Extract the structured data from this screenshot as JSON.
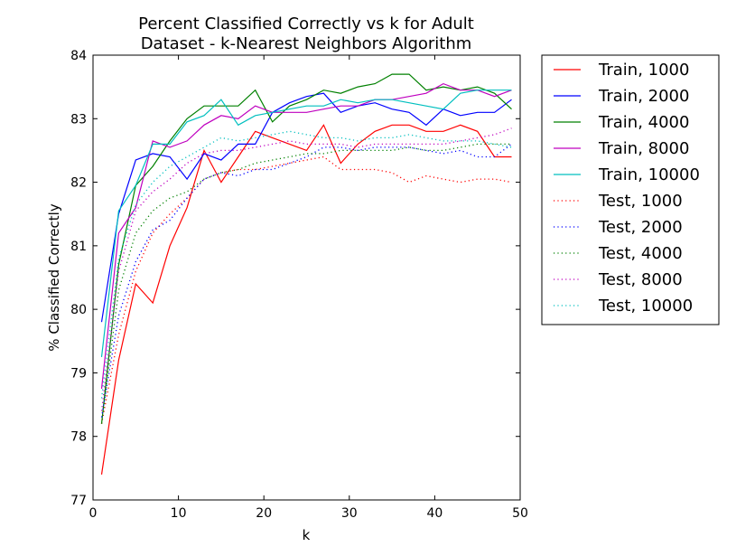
{
  "chart_data": {
    "type": "line",
    "title_lines": [
      "Percent Classified Correctly vs k for Adult",
      "Dataset - k-Nearest Neighbors Algorithm"
    ],
    "xlabel": "k",
    "ylabel": "% Classified Correctly",
    "xlim": [
      0,
      50
    ],
    "ylim": [
      77,
      84
    ],
    "xticks": [
      "0",
      "10",
      "20",
      "30",
      "40",
      "50"
    ],
    "yticks": [
      "77",
      "78",
      "79",
      "80",
      "81",
      "82",
      "83",
      "84"
    ],
    "grid": false,
    "legend_position": "outside-right",
    "x": [
      1,
      3,
      5,
      7,
      9,
      11,
      13,
      15,
      17,
      19,
      21,
      23,
      25,
      27,
      29,
      31,
      33,
      35,
      37,
      39,
      41,
      43,
      45,
      47,
      49
    ],
    "series": [
      {
        "name": "Train, 1000",
        "color": "#ff0000",
        "style": "solid",
        "values": [
          77.4,
          79.2,
          80.4,
          80.1,
          81.0,
          81.6,
          82.5,
          82.0,
          82.4,
          82.8,
          82.7,
          82.6,
          82.5,
          82.9,
          82.3,
          82.6,
          82.8,
          82.9,
          82.9,
          82.8,
          82.8,
          82.9,
          82.8,
          82.4,
          82.4
        ]
      },
      {
        "name": "Train, 2000",
        "color": "#0000ff",
        "style": "solid",
        "values": [
          79.8,
          81.5,
          82.35,
          82.45,
          82.4,
          82.05,
          82.45,
          82.35,
          82.6,
          82.6,
          83.1,
          83.25,
          83.35,
          83.4,
          83.1,
          83.2,
          83.25,
          83.15,
          83.1,
          82.9,
          83.15,
          83.05,
          83.1,
          83.1,
          83.3
        ]
      },
      {
        "name": "Train, 4000",
        "color": "#008000",
        "style": "solid",
        "values": [
          78.2,
          80.7,
          81.95,
          82.25,
          82.65,
          83.0,
          83.2,
          83.2,
          83.2,
          83.45,
          82.95,
          83.2,
          83.3,
          83.45,
          83.4,
          83.5,
          83.55,
          83.7,
          83.7,
          83.45,
          83.5,
          83.45,
          83.5,
          83.4,
          83.15
        ]
      },
      {
        "name": "Train, 8000",
        "color": "#bf00bf",
        "style": "solid",
        "values": [
          78.75,
          81.2,
          81.6,
          82.65,
          82.55,
          82.65,
          82.9,
          83.05,
          83.0,
          83.2,
          83.1,
          83.1,
          83.1,
          83.15,
          83.2,
          83.2,
          83.3,
          83.3,
          83.35,
          83.4,
          83.55,
          83.45,
          83.45,
          83.35,
          83.45
        ]
      },
      {
        "name": "Train, 10000",
        "color": "#00bfbf",
        "style": "solid",
        "values": [
          79.25,
          81.55,
          81.95,
          82.6,
          82.6,
          82.95,
          83.05,
          83.3,
          82.9,
          83.05,
          83.1,
          83.15,
          83.2,
          83.2,
          83.3,
          83.25,
          83.3,
          83.3,
          83.25,
          83.2,
          83.15,
          83.4,
          83.45,
          83.45,
          83.45
        ]
      },
      {
        "name": "Test, 1000",
        "color": "#ff0000",
        "style": "dotted",
        "values": [
          78.2,
          79.6,
          80.6,
          81.2,
          81.5,
          81.75,
          82.05,
          82.15,
          82.2,
          82.2,
          82.25,
          82.3,
          82.35,
          82.4,
          82.2,
          82.2,
          82.2,
          82.15,
          82.0,
          82.1,
          82.05,
          82.0,
          82.05,
          82.05,
          82.0
        ]
      },
      {
        "name": "Test, 2000",
        "color": "#0000ff",
        "style": "dotted",
        "values": [
          78.3,
          79.9,
          80.75,
          81.25,
          81.4,
          81.75,
          82.05,
          82.15,
          82.1,
          82.2,
          82.2,
          82.3,
          82.4,
          82.55,
          82.55,
          82.5,
          82.55,
          82.55,
          82.55,
          82.5,
          82.45,
          82.5,
          82.4,
          82.4,
          82.6
        ]
      },
      {
        "name": "Test, 4000",
        "color": "#008000",
        "style": "dotted",
        "values": [
          78.2,
          80.3,
          81.2,
          81.55,
          81.75,
          81.85,
          82.05,
          82.15,
          82.2,
          82.3,
          82.35,
          82.4,
          82.45,
          82.45,
          82.5,
          82.5,
          82.5,
          82.5,
          82.55,
          82.5,
          82.5,
          82.55,
          82.6,
          82.6,
          82.6
        ]
      },
      {
        "name": "Test, 8000",
        "color": "#bf00bf",
        "style": "dotted",
        "values": [
          78.4,
          80.6,
          81.55,
          81.85,
          82.05,
          82.3,
          82.45,
          82.5,
          82.5,
          82.55,
          82.6,
          82.65,
          82.6,
          82.6,
          82.6,
          82.55,
          82.6,
          82.6,
          82.6,
          82.6,
          82.6,
          82.65,
          82.7,
          82.75,
          82.85
        ]
      },
      {
        "name": "Test, 10000",
        "color": "#00bfbf",
        "style": "dotted",
        "values": [
          78.6,
          80.8,
          81.65,
          82.0,
          82.25,
          82.4,
          82.55,
          82.7,
          82.65,
          82.7,
          82.75,
          82.8,
          82.75,
          82.7,
          82.7,
          82.65,
          82.7,
          82.7,
          82.75,
          82.7,
          82.65,
          82.65,
          82.65,
          82.6,
          82.55
        ]
      }
    ]
  }
}
